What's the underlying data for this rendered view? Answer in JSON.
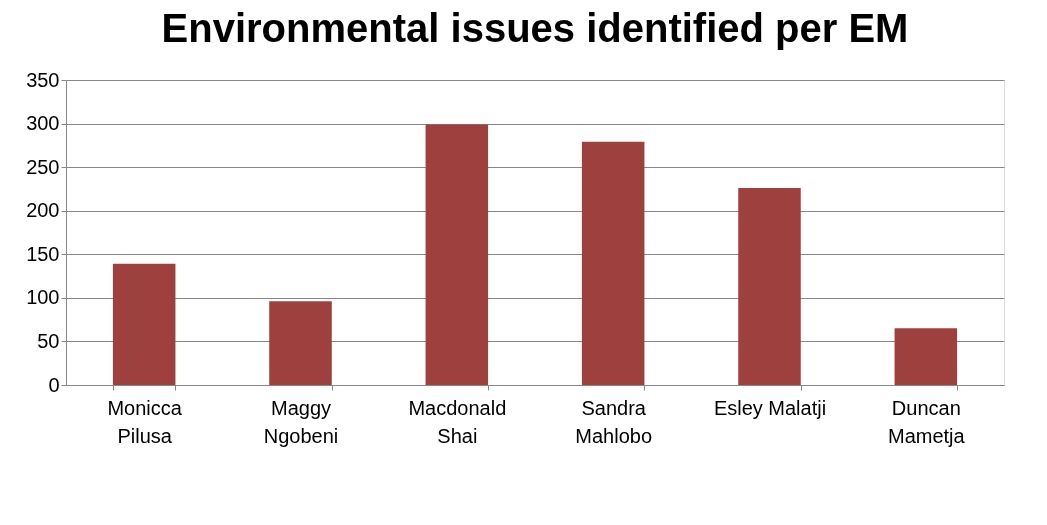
{
  "chart_data": {
    "type": "bar",
    "title": "Environmental issues identified per EM",
    "categories": [
      "Monicca\nPilusa",
      "Maggy\nNgobeni",
      "Macdonald\nShai",
      "Sandra\nMahlobo",
      "Esley Malatji",
      "Duncan\nMametja"
    ],
    "values": [
      139,
      96,
      299,
      279,
      226,
      65
    ],
    "color": "#9e413e",
    "ylim": [
      0,
      350
    ],
    "yticks": [
      0,
      50,
      100,
      150,
      200,
      250,
      300,
      350
    ],
    "grid": "y"
  }
}
